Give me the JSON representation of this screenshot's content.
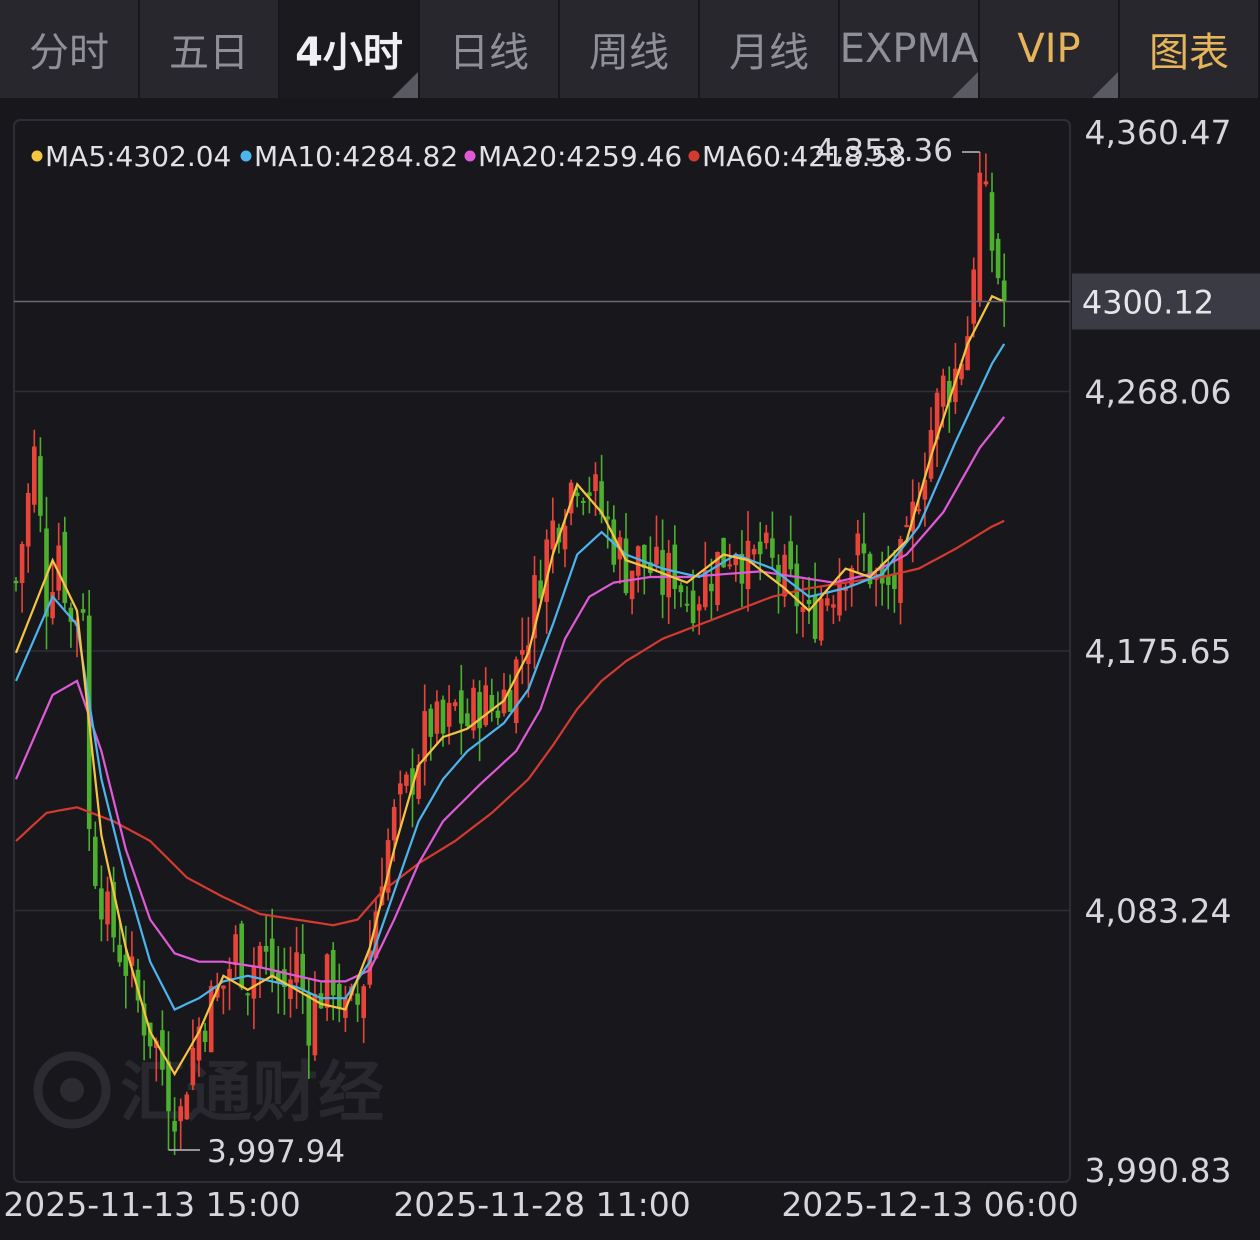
{
  "tabs": [
    {
      "label": "分时",
      "active": false
    },
    {
      "label": "五日",
      "active": false
    },
    {
      "label": "4小时",
      "active": true
    },
    {
      "label": "日线",
      "active": false
    },
    {
      "label": "周线",
      "active": false
    },
    {
      "label": "月线",
      "active": false
    },
    {
      "label": "EXPMA",
      "active": false
    },
    {
      "label": "VIP",
      "active": false
    },
    {
      "label": "图表",
      "active": false
    }
  ],
  "legend": {
    "ma5": "MA5:4302.04",
    "ma10": "MA10:4284.82",
    "ma20": "MA20:4259.46",
    "ma60": "MA60:4218.58"
  },
  "watermark": "汇通财经",
  "colors": {
    "up": "#e8443a",
    "down": "#4caf2e",
    "ma5": "#f5c542",
    "ma10": "#4db4ee",
    "ma20": "#e05ad8",
    "ma60": "#d43a30",
    "price_tag": "#3a3b44"
  },
  "chart_data": {
    "type": "candlestick",
    "y_ticks": [
      "4,360.47",
      "4,268.06",
      "4,175.65",
      "4,083.24",
      "3,990.83"
    ],
    "ylim": [
      3990.83,
      4360.47
    ],
    "x_ticks": [
      "2025-11-13 15:00",
      "2025-11-28 11:00",
      "2025-12-13 06:00"
    ],
    "current_price": "4300.12",
    "high_annotation": "4,353.36",
    "low_annotation": "3,997.94",
    "high_value": 4353.36,
    "low_value": 3997.94,
    "close_path": [
      [
        0,
        4200
      ],
      [
        3,
        4245
      ],
      [
        5,
        4195
      ],
      [
        7,
        4215
      ],
      [
        9,
        4185
      ],
      [
        11,
        4195
      ],
      [
        12,
        4110
      ],
      [
        15,
        4080
      ],
      [
        18,
        4065
      ],
      [
        20,
        4050
      ],
      [
        23,
        4035
      ],
      [
        25,
        4020
      ],
      [
        27,
        4010
      ],
      [
        28,
        4025
      ],
      [
        30,
        4042
      ],
      [
        32,
        4050
      ],
      [
        34,
        4057
      ],
      [
        36,
        4070
      ],
      [
        38,
        4060
      ],
      [
        40,
        4070
      ],
      [
        42,
        4060
      ],
      [
        44,
        4055
      ],
      [
        46,
        4065
      ],
      [
        48,
        4045
      ],
      [
        50,
        4055
      ],
      [
        52,
        4060
      ],
      [
        54,
        4045
      ],
      [
        56,
        4050
      ],
      [
        58,
        4070
      ],
      [
        60,
        4100
      ],
      [
        62,
        4115
      ],
      [
        64,
        4125
      ],
      [
        66,
        4140
      ],
      [
        68,
        4150
      ],
      [
        70,
        4145
      ],
      [
        72,
        4155
      ],
      [
        74,
        4150
      ],
      [
        76,
        4158
      ],
      [
        78,
        4155
      ],
      [
        80,
        4160
      ],
      [
        82,
        4170
      ],
      [
        84,
        4185
      ],
      [
        86,
        4205
      ],
      [
        88,
        4220
      ],
      [
        90,
        4230
      ],
      [
        92,
        4240
      ],
      [
        94,
        4235
      ],
      [
        96,
        4225
      ],
      [
        98,
        4215
      ],
      [
        100,
        4205
      ],
      [
        102,
        4208
      ],
      [
        104,
        4205
      ],
      [
        106,
        4200
      ],
      [
        108,
        4205
      ],
      [
        110,
        4195
      ],
      [
        112,
        4198
      ],
      [
        114,
        4205
      ],
      [
        116,
        4210
      ],
      [
        118,
        4215
      ],
      [
        120,
        4205
      ],
      [
        122,
        4210
      ],
      [
        124,
        4205
      ],
      [
        126,
        4200
      ],
      [
        128,
        4195
      ],
      [
        130,
        4185
      ],
      [
        132,
        4195
      ],
      [
        134,
        4200
      ],
      [
        136,
        4208
      ],
      [
        138,
        4210
      ],
      [
        140,
        4205
      ],
      [
        142,
        4195
      ],
      [
        144,
        4200
      ],
      [
        146,
        4210
      ],
      [
        148,
        4235
      ],
      [
        150,
        4255
      ],
      [
        152,
        4270
      ],
      [
        154,
        4275
      ],
      [
        156,
        4290
      ],
      [
        158,
        4345
      ],
      [
        160,
        4320
      ],
      [
        162,
        4300
      ]
    ],
    "ma5": [
      [
        0,
        4175
      ],
      [
        6,
        4208
      ],
      [
        10,
        4190
      ],
      [
        14,
        4110
      ],
      [
        18,
        4070
      ],
      [
        22,
        4040
      ],
      [
        26,
        4025
      ],
      [
        30,
        4040
      ],
      [
        34,
        4060
      ],
      [
        38,
        4055
      ],
      [
        42,
        4060
      ],
      [
        46,
        4055
      ],
      [
        50,
        4050
      ],
      [
        54,
        4048
      ],
      [
        58,
        4070
      ],
      [
        62,
        4105
      ],
      [
        66,
        4135
      ],
      [
        70,
        4145
      ],
      [
        74,
        4148
      ],
      [
        80,
        4158
      ],
      [
        84,
        4175
      ],
      [
        88,
        4210
      ],
      [
        92,
        4235
      ],
      [
        96,
        4225
      ],
      [
        100,
        4208
      ],
      [
        104,
        4205
      ],
      [
        110,
        4200
      ],
      [
        116,
        4210
      ],
      [
        120,
        4208
      ],
      [
        126,
        4198
      ],
      [
        130,
        4190
      ],
      [
        136,
        4205
      ],
      [
        140,
        4202
      ],
      [
        146,
        4215
      ],
      [
        150,
        4245
      ],
      [
        156,
        4285
      ],
      [
        160,
        4302
      ],
      [
        162,
        4300
      ]
    ],
    "ma10": [
      [
        0,
        4165
      ],
      [
        6,
        4195
      ],
      [
        10,
        4185
      ],
      [
        14,
        4130
      ],
      [
        18,
        4095
      ],
      [
        22,
        4065
      ],
      [
        26,
        4048
      ],
      [
        30,
        4052
      ],
      [
        34,
        4058
      ],
      [
        38,
        4060
      ],
      [
        42,
        4058
      ],
      [
        46,
        4056
      ],
      [
        50,
        4052
      ],
      [
        54,
        4052
      ],
      [
        58,
        4065
      ],
      [
        62,
        4090
      ],
      [
        66,
        4115
      ],
      [
        70,
        4130
      ],
      [
        74,
        4140
      ],
      [
        80,
        4150
      ],
      [
        84,
        4162
      ],
      [
        88,
        4185
      ],
      [
        92,
        4210
      ],
      [
        96,
        4218
      ],
      [
        100,
        4210
      ],
      [
        106,
        4205
      ],
      [
        112,
        4202
      ],
      [
        118,
        4210
      ],
      [
        124,
        4205
      ],
      [
        130,
        4195
      ],
      [
        136,
        4198
      ],
      [
        142,
        4203
      ],
      [
        148,
        4220
      ],
      [
        154,
        4250
      ],
      [
        160,
        4278
      ],
      [
        162,
        4285
      ]
    ],
    "ma20": [
      [
        0,
        4130
      ],
      [
        6,
        4160
      ],
      [
        10,
        4165
      ],
      [
        14,
        4140
      ],
      [
        18,
        4105
      ],
      [
        22,
        4080
      ],
      [
        26,
        4068
      ],
      [
        30,
        4065
      ],
      [
        34,
        4065
      ],
      [
        40,
        4063
      ],
      [
        46,
        4060
      ],
      [
        50,
        4058
      ],
      [
        54,
        4058
      ],
      [
        58,
        4062
      ],
      [
        62,
        4080
      ],
      [
        66,
        4100
      ],
      [
        70,
        4115
      ],
      [
        76,
        4128
      ],
      [
        82,
        4140
      ],
      [
        86,
        4155
      ],
      [
        90,
        4180
      ],
      [
        94,
        4195
      ],
      [
        98,
        4200
      ],
      [
        104,
        4202
      ],
      [
        110,
        4202
      ],
      [
        116,
        4203
      ],
      [
        122,
        4204
      ],
      [
        128,
        4202
      ],
      [
        134,
        4200
      ],
      [
        140,
        4203
      ],
      [
        146,
        4210
      ],
      [
        152,
        4225
      ],
      [
        158,
        4248
      ],
      [
        162,
        4259
      ]
    ],
    "ma60": [
      [
        0,
        4108
      ],
      [
        5,
        4118
      ],
      [
        10,
        4120
      ],
      [
        16,
        4115
      ],
      [
        22,
        4108
      ],
      [
        28,
        4095
      ],
      [
        34,
        4088
      ],
      [
        40,
        4082
      ],
      [
        46,
        4080
      ],
      [
        52,
        4078
      ],
      [
        56,
        4080
      ],
      [
        60,
        4090
      ],
      [
        66,
        4100
      ],
      [
        72,
        4108
      ],
      [
        78,
        4118
      ],
      [
        84,
        4130
      ],
      [
        88,
        4142
      ],
      [
        92,
        4155
      ],
      [
        96,
        4165
      ],
      [
        100,
        4172
      ],
      [
        106,
        4180
      ],
      [
        112,
        4185
      ],
      [
        118,
        4190
      ],
      [
        124,
        4195
      ],
      [
        130,
        4198
      ],
      [
        136,
        4200
      ],
      [
        142,
        4202
      ],
      [
        148,
        4205
      ],
      [
        154,
        4212
      ],
      [
        160,
        4220
      ],
      [
        162,
        4222
      ]
    ]
  }
}
